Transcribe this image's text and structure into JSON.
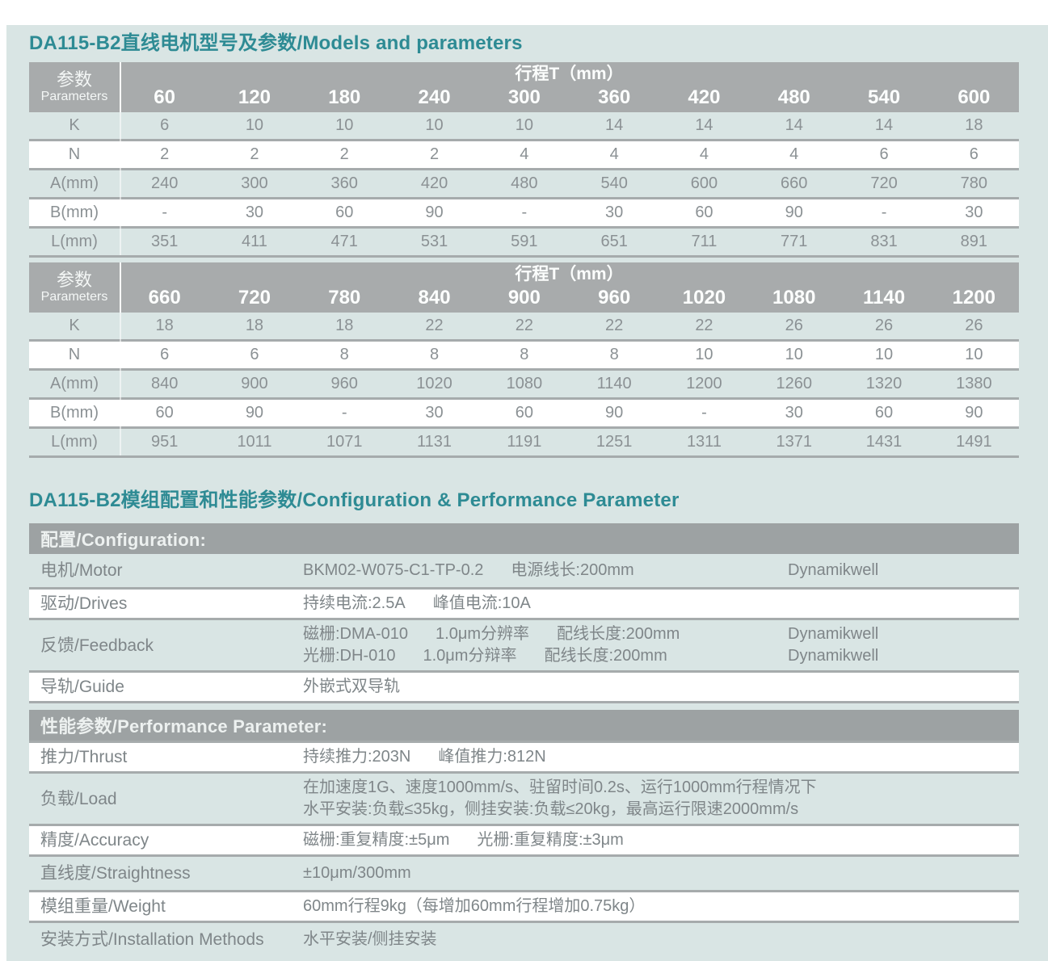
{
  "titles": {
    "models": "DA115-B2直线电机型号及参数/Models and parameters",
    "config": "DA115-B2模组配置和性能参数/Configuration & Performance Parameter"
  },
  "colors": {
    "accent_teal": "#2e8b94",
    "panel_background": "#d9e5e4",
    "table_header_gray": "#a8abac",
    "section_bar_gray": "#9da2a3",
    "divider_gray": "#a6abac",
    "row_white": "#ffffff",
    "body_text_gray": "#7f8689"
  },
  "param_tables": [
    {
      "corner_zh": "参数",
      "corner_en": "Parameters",
      "stroke_header": "行程T（mm）",
      "columns": [
        "60",
        "120",
        "180",
        "240",
        "300",
        "360",
        "420",
        "480",
        "540",
        "600"
      ],
      "rows": [
        {
          "label": "K",
          "values": [
            "6",
            "10",
            "10",
            "10",
            "10",
            "14",
            "14",
            "14",
            "14",
            "18"
          ]
        },
        {
          "label": "N",
          "values": [
            "2",
            "2",
            "2",
            "2",
            "4",
            "4",
            "4",
            "4",
            "6",
            "6"
          ]
        },
        {
          "label": "A(mm)",
          "values": [
            "240",
            "300",
            "360",
            "420",
            "480",
            "540",
            "600",
            "660",
            "720",
            "780"
          ]
        },
        {
          "label": "B(mm)",
          "values": [
            "-",
            "30",
            "60",
            "90",
            "-",
            "30",
            "60",
            "90",
            "-",
            "30"
          ]
        },
        {
          "label": "L(mm)",
          "values": [
            "351",
            "411",
            "471",
            "531",
            "591",
            "651",
            "711",
            "771",
            "831",
            "891"
          ]
        }
      ]
    },
    {
      "corner_zh": "参数",
      "corner_en": "Parameters",
      "stroke_header": "行程T（mm）",
      "columns": [
        "660",
        "720",
        "780",
        "840",
        "900",
        "960",
        "1020",
        "1080",
        "1140",
        "1200"
      ],
      "rows": [
        {
          "label": "K",
          "values": [
            "18",
            "18",
            "18",
            "22",
            "22",
            "22",
            "22",
            "26",
            "26",
            "26"
          ]
        },
        {
          "label": "N",
          "values": [
            "6",
            "6",
            "8",
            "8",
            "8",
            "8",
            "10",
            "10",
            "10",
            "10"
          ]
        },
        {
          "label": "A(mm)",
          "values": [
            "840",
            "900",
            "960",
            "1020",
            "1080",
            "1140",
            "1200",
            "1260",
            "1320",
            "1380"
          ]
        },
        {
          "label": "B(mm)",
          "values": [
            "60",
            "90",
            "-",
            "30",
            "60",
            "90",
            "-",
            "30",
            "60",
            "90"
          ]
        },
        {
          "label": "L(mm)",
          "values": [
            "951",
            "1011",
            "1071",
            "1131",
            "1191",
            "1251",
            "1311",
            "1371",
            "1431",
            "1491"
          ]
        }
      ]
    }
  ],
  "spec_sections": [
    {
      "header": "配置/Configuration:",
      "rows": [
        {
          "label": "电机/Motor",
          "shade": "tint",
          "lines": [
            {
              "parts": [
                "BKM02-W075-C1-TP-0.2",
                "电源线长:200mm"
              ],
              "brand": "Dynamikwell"
            }
          ]
        },
        {
          "label": "驱动/Drives",
          "shade": "white",
          "lines": [
            {
              "parts": [
                "持续电流:2.5A",
                "峰值电流:10A"
              ]
            }
          ]
        },
        {
          "label": "反馈/Feedback",
          "shade": "tint",
          "lines": [
            {
              "parts": [
                "磁栅:DMA-010",
                "1.0μm分辨率",
                "配线长度:200mm"
              ],
              "brand": "Dynamikwell"
            },
            {
              "parts": [
                "光栅:DH-010",
                "1.0μm分辩率",
                "配线长度:200mm"
              ],
              "brand": "Dynamikwell"
            }
          ]
        },
        {
          "label": "导轨/Guide",
          "shade": "white",
          "lines": [
            {
              "parts": [
                "外嵌式双导轨"
              ]
            }
          ]
        }
      ]
    },
    {
      "header": "性能参数/Performance Parameter:",
      "rows": [
        {
          "label": "推力/Thrust",
          "shade": "white",
          "lines": [
            {
              "parts": [
                "持续推力:203N",
                "峰值推力:812N"
              ]
            }
          ]
        },
        {
          "label": "负载/Load",
          "shade": "tint",
          "lines": [
            {
              "parts": [
                "在加速度1G、速度1000mm/s、驻留时间0.2s、运行1000mm行程情况下"
              ]
            },
            {
              "parts": [
                "水平安装:负载≤35kg，侧挂安装:负载≤20kg，最高运行限速2000mm/s"
              ]
            }
          ]
        },
        {
          "label": "精度/Accuracy",
          "shade": "white",
          "lines": [
            {
              "parts": [
                "磁栅:重复精度:±5μm",
                "光栅:重复精度:±3μm"
              ]
            }
          ]
        },
        {
          "label": "直线度/Straightness",
          "shade": "tint",
          "lines": [
            {
              "parts": [
                "±10μm/300mm"
              ]
            }
          ]
        },
        {
          "label": "模组重量/Weight",
          "shade": "white",
          "lines": [
            {
              "parts": [
                "60mm行程9kg（每增加60mm行程增加0.75kg）"
              ]
            }
          ]
        },
        {
          "label": "安装方式/Installation Methods",
          "shade": "tint",
          "lines": [
            {
              "parts": [
                "水平安装/侧挂安装"
              ]
            }
          ]
        }
      ]
    }
  ]
}
